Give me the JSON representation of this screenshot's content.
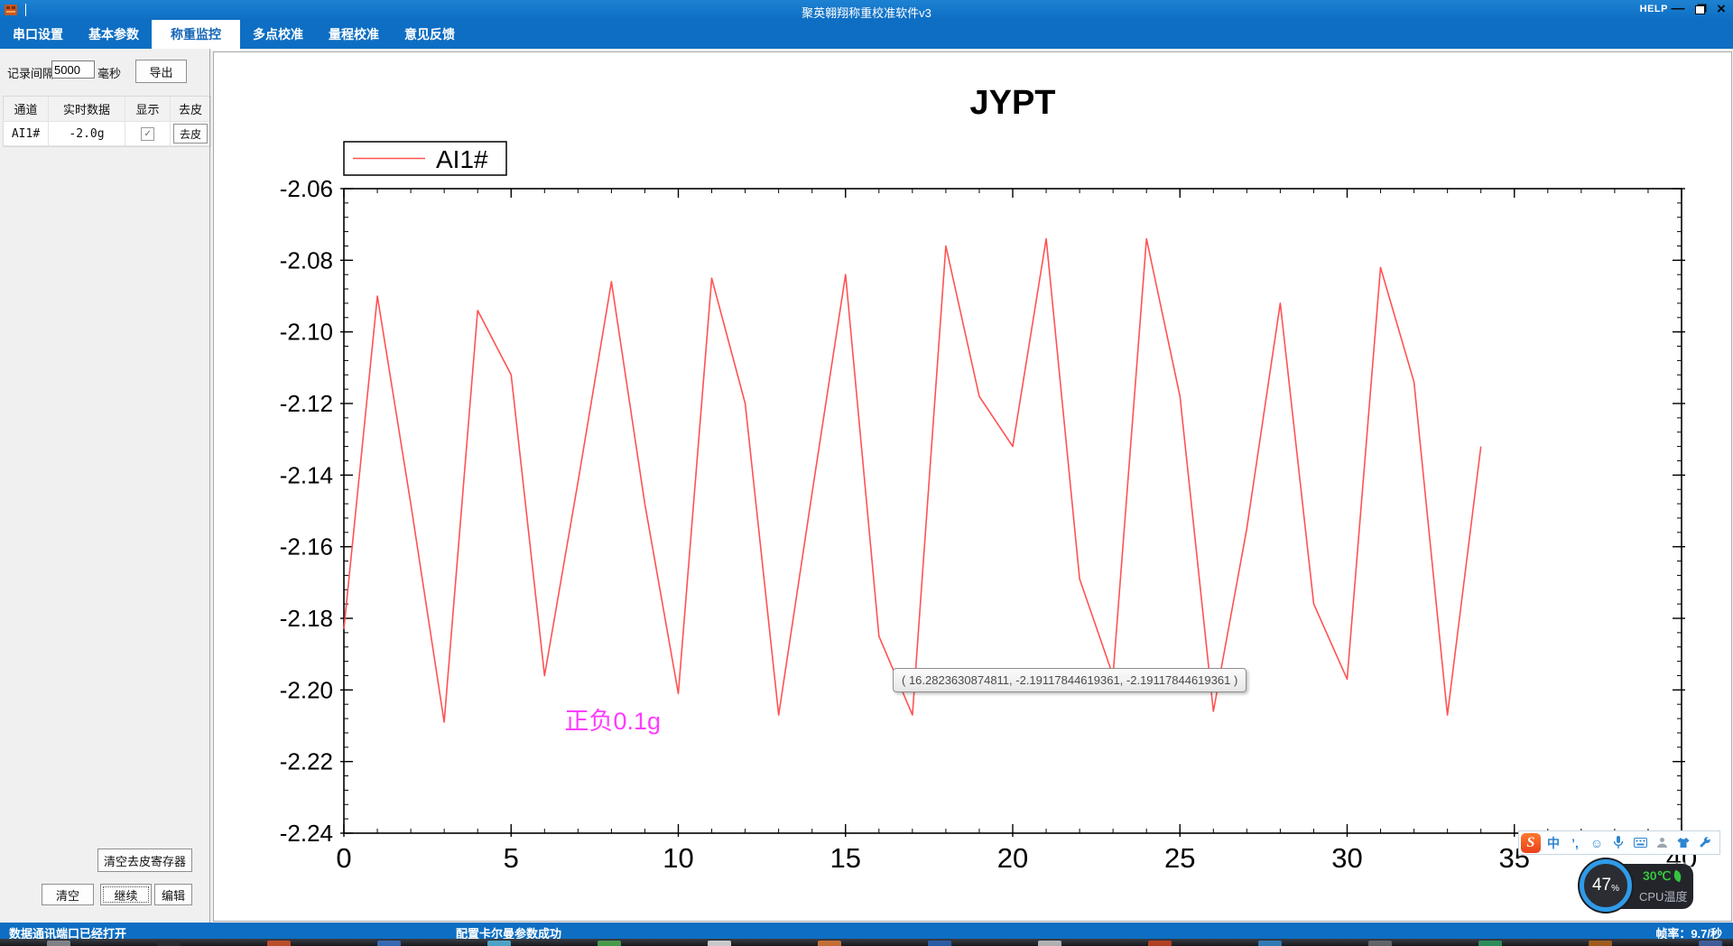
{
  "window": {
    "title": "聚英翱翔称重校准软件v3",
    "help_label": "HELP",
    "minimize_glyph": "—",
    "close_glyph": "×"
  },
  "menu": {
    "active_index": 2,
    "tabs": [
      {
        "label": "串口设置"
      },
      {
        "label": "基本参数"
      },
      {
        "label": "称重监控"
      },
      {
        "label": "多点校准"
      },
      {
        "label": "量程校准"
      },
      {
        "label": "意见反馈"
      }
    ]
  },
  "panel": {
    "interval_label": "记录间隔",
    "interval_value": "5000",
    "interval_unit": "毫秒",
    "export_button": "导出",
    "table": {
      "headers": [
        "通道",
        "实时数据",
        "显示",
        "去皮"
      ],
      "rows": [
        {
          "channel": "AI1#",
          "value": "-2.0g",
          "shown": true,
          "check_glyph": "✓",
          "tare_button": "去皮"
        }
      ]
    },
    "clear_tare_button": "清空去皮寄存器",
    "clear_button": "清空",
    "continue_button": "继续",
    "edit_button": "编辑"
  },
  "chart_data": {
    "type": "line",
    "title": "JYPT",
    "xlabel": "",
    "ylabel": "",
    "grid": false,
    "xlim": [
      0,
      40
    ],
    "ylim": [
      -2.24,
      -2.06
    ],
    "x_ticks": [
      0,
      5,
      10,
      15,
      20,
      25,
      30,
      35,
      40
    ],
    "x_minor_step": 1,
    "y_ticks": [
      -2.06,
      -2.08,
      -2.1,
      -2.12,
      -2.14,
      -2.16,
      -2.18,
      -2.2,
      -2.22,
      -2.24
    ],
    "y_minor_step": 0.004,
    "legend": {
      "position": "top-left",
      "entries": [
        "AI1#"
      ]
    },
    "series": [
      {
        "name": "AI1#",
        "color": "#FF5252",
        "x_step": 1,
        "values": [
          -2.183,
          -2.09,
          -2.148,
          -2.209,
          -2.094,
          -2.112,
          -2.196,
          -2.142,
          -2.086,
          -2.148,
          -2.201,
          -2.085,
          -2.12,
          -2.207,
          -2.145,
          -2.084,
          -2.185,
          -2.207,
          -2.076,
          -2.118,
          -2.132,
          -2.074,
          -2.169,
          -2.196,
          -2.074,
          -2.118,
          -2.206,
          -2.155,
          -2.092,
          -2.176,
          -2.197,
          -2.082,
          -2.114,
          -2.207,
          -2.132
        ]
      }
    ],
    "annotation": {
      "text": "正负0.1g",
      "color": "#FF3CFF",
      "x": 6.6,
      "y": -2.211
    }
  },
  "tooltip": {
    "text": "( 16.2823630874811, -2.19117844619361, -2.19117844619361 )"
  },
  "ime_bar": {
    "icons": [
      {
        "name": "sogou-logo-icon",
        "glyph": "S",
        "logo": true
      },
      {
        "name": "chinese-mode-icon",
        "glyph": "中"
      },
      {
        "name": "punctuation-mode-icon",
        "glyph": "’,"
      },
      {
        "name": "emoji-icon",
        "glyph": "☺"
      },
      {
        "name": "voice-input-icon",
        "svg": "mic"
      },
      {
        "name": "soft-keyboard-icon",
        "svg": "keyboard"
      },
      {
        "name": "account-icon",
        "svg": "person"
      },
      {
        "name": "skin-icon",
        "svg": "shirt"
      },
      {
        "name": "settings-wrench-icon",
        "svg": "wrench"
      }
    ]
  },
  "cpu_widget": {
    "percent": "47",
    "percent_sign": "%",
    "temperature": "30℃",
    "label": "CPU温度"
  },
  "status_bar": {
    "left": "数据通讯端口已经打开",
    "center": "配置卡尔曼参数成功",
    "right": "帧率：9.7/秒"
  },
  "taskbar": {
    "fragment_colors": [
      "#8f9298",
      "#2b2d31",
      "#d6552c",
      "#3a76c9",
      "#56b8e0",
      "#4caf50",
      "#e6e6e6",
      "#e07b39",
      "#2a66b8",
      "#c9c9c9",
      "#cc4422",
      "#3388cc",
      "#6b6e74",
      "#2f9e62",
      "#b5651d",
      "#4466aa"
    ]
  },
  "colors": {
    "accent_blue": "#0D6EC3",
    "line_red": "#FF5252",
    "annotation_magenta": "#FF3CFF",
    "cpu_ring_blue": "#2F9BE8",
    "cpu_green": "#35C43F"
  }
}
